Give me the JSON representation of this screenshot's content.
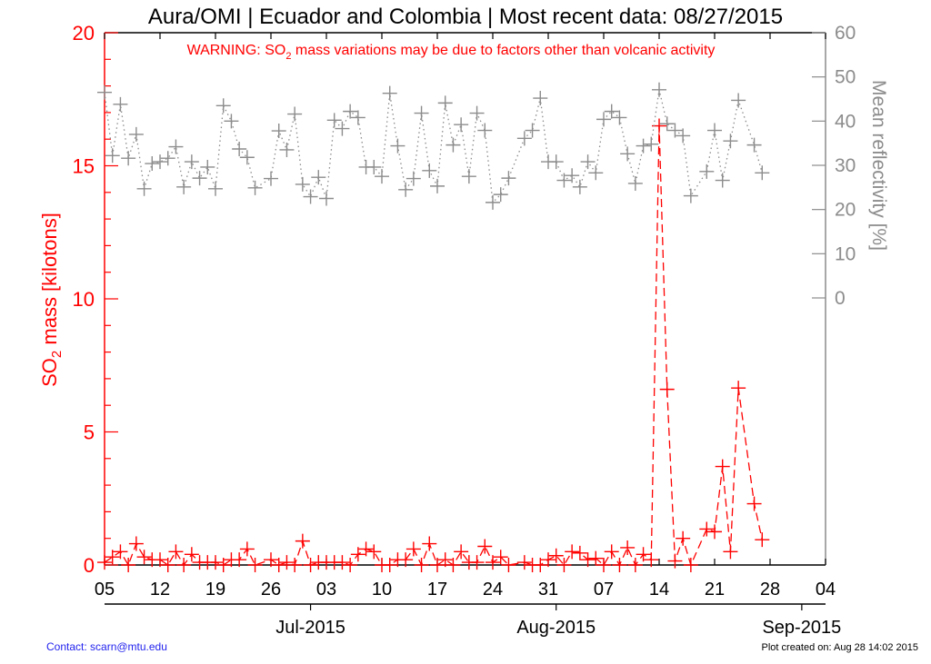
{
  "chart_data": {
    "type": "line",
    "title": "Aura/OMI | Ecuador and Colombia | Most recent data: 08/27/2015",
    "warning": {
      "prefix": "WARNING: SO",
      "sub": "2",
      "suffix": " mass variations may be due to factors other than volcanic activity"
    },
    "ylabel_left": {
      "prefix": "SO",
      "sub": "2",
      "suffix": " mass [kilotons]"
    },
    "ylabel_right": "Mean reflectivity [%]",
    "xlim": [
      "2015-06-05",
      "2015-09-04"
    ],
    "ylim_left": [
      0,
      20
    ],
    "ylim_right": [
      0,
      60
    ],
    "left_ticks": [
      "0",
      "5",
      "10",
      "15",
      "20"
    ],
    "right_ticks": [
      "0",
      "10",
      "20",
      "30",
      "40",
      "50",
      "60"
    ],
    "x_ticks": [
      "05",
      "12",
      "19",
      "26",
      "03",
      "10",
      "17",
      "24",
      "31",
      "07",
      "14",
      "21",
      "28",
      "04"
    ],
    "month_ticks": [
      {
        "date": "2015-07-01",
        "label": "Jul-2015"
      },
      {
        "date": "2015-08-01",
        "label": "Aug-2015"
      },
      {
        "date": "2015-09-01",
        "label": "Sep-2015"
      }
    ],
    "grid": false,
    "colors": {
      "so2": "#ff0000",
      "reflectivity": "#8c8c8c",
      "axis": "#000000"
    },
    "dates": [
      "2015-06-05",
      "2015-06-06",
      "2015-06-07",
      "2015-06-08",
      "2015-06-09",
      "2015-06-10",
      "2015-06-11",
      "2015-06-12",
      "2015-06-13",
      "2015-06-14",
      "2015-06-15",
      "2015-06-16",
      "2015-06-17",
      "2015-06-18",
      "2015-06-19",
      "2015-06-20",
      "2015-06-21",
      "2015-06-22",
      "2015-06-23",
      "2015-06-24",
      "2015-06-26",
      "2015-06-27",
      "2015-06-28",
      "2015-06-29",
      "2015-06-30",
      "2015-07-01",
      "2015-07-02",
      "2015-07-03",
      "2015-07-04",
      "2015-07-05",
      "2015-07-06",
      "2015-07-07",
      "2015-07-08",
      "2015-07-09",
      "2015-07-10",
      "2015-07-11",
      "2015-07-12",
      "2015-07-13",
      "2015-07-14",
      "2015-07-15",
      "2015-07-16",
      "2015-07-17",
      "2015-07-18",
      "2015-07-19",
      "2015-07-20",
      "2015-07-21",
      "2015-07-22",
      "2015-07-23",
      "2015-07-24",
      "2015-07-25",
      "2015-07-26",
      "2015-07-28",
      "2015-07-29",
      "2015-07-30",
      "2015-07-31",
      "2015-08-01",
      "2015-08-02",
      "2015-08-03",
      "2015-08-04",
      "2015-08-05",
      "2015-08-06",
      "2015-08-07",
      "2015-08-08",
      "2015-08-09",
      "2015-08-10",
      "2015-08-11",
      "2015-08-12",
      "2015-08-13",
      "2015-08-14",
      "2015-08-15",
      "2015-08-16",
      "2015-08-17",
      "2015-08-18",
      "2015-08-20",
      "2015-08-21",
      "2015-08-22",
      "2015-08-23",
      "2015-08-24",
      "2015-08-26",
      "2015-08-27"
    ],
    "series": [
      {
        "axis": "left",
        "style": "dashed",
        "values": [
          0.1,
          0.3,
          0.5,
          0,
          0.8,
          0.3,
          0.2,
          0.2,
          0,
          0.5,
          0,
          0.4,
          0.1,
          0.1,
          0.1,
          0,
          0.2,
          0.2,
          0.6,
          0,
          0.2,
          0,
          0.1,
          0,
          0.9,
          0,
          0.1,
          0.1,
          0.1,
          0.1,
          0,
          0.4,
          0.6,
          0.5,
          0,
          0,
          0.2,
          0.2,
          0.6,
          0,
          0.8,
          0,
          0.2,
          0,
          0.5,
          0.1,
          0.1,
          0.7,
          0.1,
          0.3,
          0,
          0.1,
          0,
          0,
          0.2,
          0.35,
          0,
          0.5,
          0.45,
          0.2,
          0.25,
          0,
          0.5,
          0,
          0.65,
          0,
          0.4,
          0.2,
          16.5,
          6.6,
          0.15,
          1.0,
          0,
          1.35,
          1.25,
          3.7,
          0.5,
          6.65,
          2.3,
          0.95
        ]
      },
      {
        "axis": "right",
        "style": "dotted",
        "values": [
          46.5,
          32.2,
          43.8,
          31.6,
          37.0,
          24.7,
          30.4,
          30.8,
          31.6,
          34.2,
          25.1,
          30.8,
          27.1,
          29.6,
          24.7,
          43.5,
          40.0,
          33.7,
          31.8,
          24.9,
          27.0,
          37.8,
          33.5,
          41.6,
          25.7,
          22.9,
          27.3,
          22.5,
          40.2,
          38.3,
          42.2,
          40.8,
          29.6,
          29.6,
          27.5,
          46.3,
          34.4,
          24.5,
          27.0,
          41.8,
          28.8,
          25.3,
          44.1,
          34.6,
          39.2,
          27.5,
          41.8,
          37.9,
          21.6,
          23.4,
          27.1,
          36.1,
          37.9,
          45.2,
          30.8,
          30.8,
          26.6,
          27.7,
          25.1,
          30.8,
          28.3,
          40.4,
          42.2,
          40.8,
          32.6,
          25.9,
          34.4,
          34.8,
          47.1,
          39.4,
          37.9,
          36.7,
          23.1,
          28.6,
          37.9,
          26.6,
          35.5,
          44.7,
          34.6,
          28.3
        ]
      }
    ]
  },
  "footer": {
    "contact": "Contact: scarn@mtu.edu",
    "created": "Plot created on: Aug 28 14:02 2015"
  }
}
